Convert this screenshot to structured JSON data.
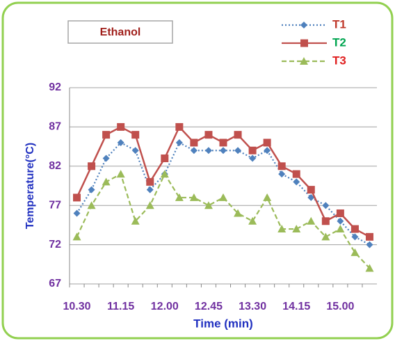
{
  "chart_data": {
    "type": "line",
    "annotation": "Ethanol",
    "xlabel": "Time (min)",
    "ylabel": "Temperature(°C)",
    "categories": [
      "10.30",
      null,
      null,
      "11.15",
      null,
      null,
      "12.00",
      null,
      null,
      "12.45",
      null,
      null,
      "13.30",
      null,
      null,
      "14.15",
      null,
      null,
      "15.00",
      null,
      null
    ],
    "series": [
      {
        "name": "T1",
        "color": "#4f81bd",
        "label_color": "#c0392b",
        "dash": "2,3",
        "marker": "diamond",
        "values": [
          76,
          79,
          83,
          85,
          84,
          79,
          81,
          85,
          84,
          84,
          84,
          84,
          83,
          84,
          81,
          80,
          78,
          77,
          75,
          73,
          72
        ]
      },
      {
        "name": "T2",
        "color": "#c0504d",
        "label_color": "#00a550",
        "dash": "none",
        "marker": "square",
        "values": [
          78,
          82,
          86,
          87,
          86,
          80,
          83,
          87,
          85,
          86,
          85,
          86,
          84,
          85,
          82,
          81,
          79,
          75,
          76,
          74,
          73
        ]
      },
      {
        "name": "T3",
        "color": "#9bbb59",
        "label_color": "#e02020",
        "dash": "7,4",
        "marker": "triangle",
        "values": [
          73,
          77,
          80,
          81,
          75,
          77,
          81,
          78,
          78,
          77,
          78,
          76,
          75,
          78,
          74,
          74,
          75,
          73,
          74,
          71,
          69
        ]
      }
    ],
    "ylim": [
      67,
      92
    ],
    "yticks": [
      67,
      72,
      77,
      82,
      87,
      92
    ],
    "grid": true
  }
}
